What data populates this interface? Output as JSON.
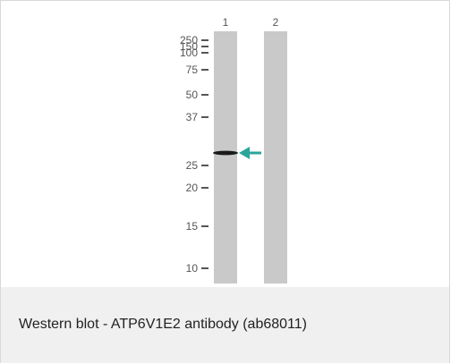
{
  "blot": {
    "lanes": [
      "1",
      "2"
    ],
    "markers": [
      "250",
      "150",
      "100",
      "75",
      "50",
      "37",
      "25",
      "20",
      "15",
      "10"
    ],
    "colors": {
      "lane": "#c9c9c9",
      "band": "#1a1a1a",
      "arrow": "#2aa59a",
      "marker_text": "#555555"
    }
  },
  "caption": {
    "text": "Western blot - ATP6V1E2 antibody (ab68011)"
  }
}
